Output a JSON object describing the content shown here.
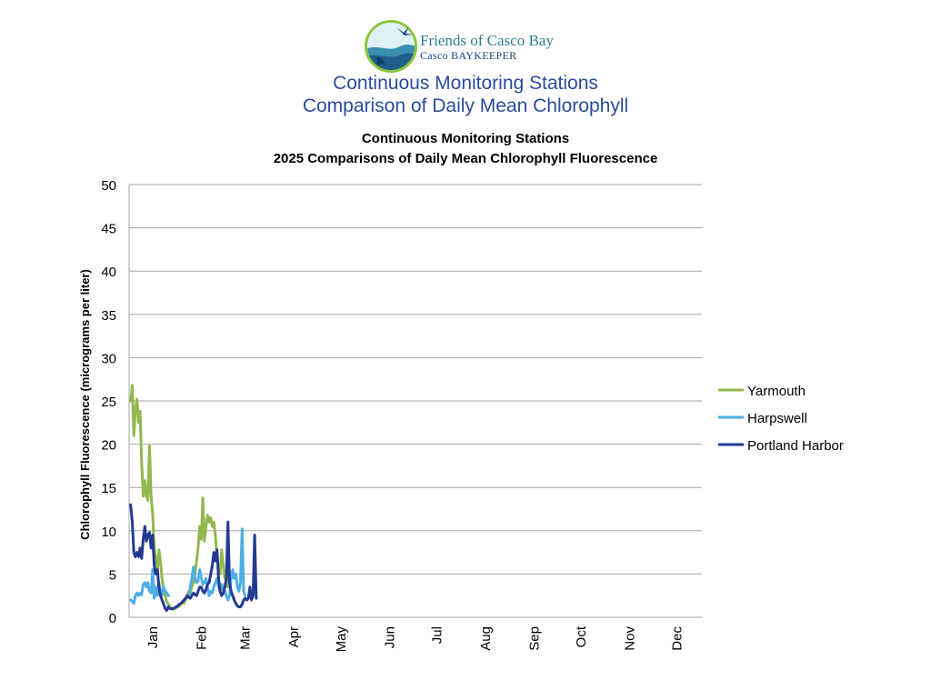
{
  "logo": {
    "name": "Friends of Casco Bay",
    "sub": "Casco BAYKEEPER"
  },
  "page_title": {
    "line1": "Continuous Monitoring Stations",
    "line2": "Comparison of Daily Mean Chlorophyll"
  },
  "colors": {
    "yarmouth": "#92b84e",
    "harpswell": "#4eaee5",
    "portland": "#233a92",
    "grid": "#a6a6a6",
    "title": "#2b4c9b"
  },
  "chart_data": {
    "type": "line",
    "title": [
      "Continuous Monitoring Stations",
      "2025 Comparisons of Daily Mean Chlorophyll Fluorescence"
    ],
    "xlabel": "",
    "ylabel": "Chlorophyll Fluorescence (micrograms per liter)",
    "ylim": [
      0,
      50
    ],
    "yticks": [
      0,
      5,
      10,
      15,
      20,
      25,
      30,
      35,
      40,
      45,
      50
    ],
    "xlim": [
      0,
      365
    ],
    "xticks": [
      {
        "label": "Jan",
        "day": 15
      },
      {
        "label": "Feb",
        "day": 46
      },
      {
        "label": "Mar",
        "day": 74
      },
      {
        "label": "Apr",
        "day": 105
      },
      {
        "label": "May",
        "day": 135
      },
      {
        "label": "Jun",
        "day": 166
      },
      {
        "label": "Jul",
        "day": 196
      },
      {
        "label": "Aug",
        "day": 227
      },
      {
        "label": "Sep",
        "day": 258
      },
      {
        "label": "Oct",
        "day": 288
      },
      {
        "label": "Nov",
        "day": 319
      },
      {
        "label": "Dec",
        "day": 349
      }
    ],
    "grid": true,
    "legend_position": "right",
    "series": [
      {
        "name": "Yarmouth",
        "color": "#92b84e",
        "points": [
          [
            1,
            25
          ],
          [
            2,
            26.8
          ],
          [
            3,
            21
          ],
          [
            4,
            24
          ],
          [
            5,
            25.2
          ],
          [
            6,
            22.5
          ],
          [
            7,
            23.8
          ],
          [
            8,
            18
          ],
          [
            9,
            14
          ],
          [
            10,
            15.8
          ],
          [
            11,
            14
          ],
          [
            12,
            13.5
          ],
          [
            13,
            19.8
          ],
          [
            14,
            14
          ],
          [
            15,
            12
          ],
          [
            16,
            8
          ],
          [
            17,
            7
          ],
          [
            18,
            5.2
          ],
          [
            19,
            7.8
          ],
          [
            20,
            6.5
          ],
          [
            21,
            4.5
          ],
          [
            22,
            3
          ],
          [
            23,
            2.5
          ],
          [
            24,
            1.8
          ],
          [
            25,
            1.5
          ],
          [
            26,
            1.2
          ],
          [
            27,
            1.0
          ],
          [
            28,
            0.9
          ],
          [
            29,
            1.0
          ],
          [
            30,
            1.1
          ],
          [
            31,
            1.2
          ],
          [
            32,
            1.3
          ],
          [
            33,
            1.5
          ],
          [
            34,
            1.8
          ],
          [
            35,
            1.6
          ],
          [
            36,
            2.0
          ],
          [
            37,
            2.5
          ],
          [
            38,
            3.0
          ],
          [
            39,
            2.8
          ],
          [
            40,
            3.5
          ],
          [
            41,
            4.0
          ],
          [
            42,
            5.0
          ],
          [
            43,
            6.5
          ],
          [
            44,
            8.0
          ],
          [
            45,
            10.5
          ],
          [
            46,
            9.0
          ],
          [
            47,
            13.8
          ],
          [
            48,
            8.8
          ],
          [
            49,
            10.5
          ],
          [
            50,
            11.8
          ],
          [
            51,
            11.0
          ],
          [
            52,
            11.5
          ],
          [
            53,
            10.5
          ],
          [
            54,
            11.0
          ],
          [
            55,
            9.5
          ],
          [
            56,
            7.0
          ],
          [
            57,
            5.5
          ],
          [
            58,
            5.0
          ],
          [
            59,
            7.8
          ],
          [
            60,
            6.0
          ],
          [
            61,
            4.5
          ],
          [
            62,
            5.2
          ],
          [
            63,
            3.5
          ]
        ]
      },
      {
        "name": "Harpswell",
        "color": "#4eaee5",
        "points": [
          [
            1,
            2.0
          ],
          [
            2,
            1.8
          ],
          [
            3,
            1.6
          ],
          [
            4,
            2.5
          ],
          [
            5,
            2.8
          ],
          [
            6,
            2.5
          ],
          [
            7,
            2.8
          ],
          [
            8,
            2.6
          ],
          [
            9,
            3.8
          ],
          [
            10,
            4.0
          ],
          [
            11,
            3.5
          ],
          [
            12,
            4.0
          ],
          [
            13,
            3.0
          ],
          [
            14,
            2.8
          ],
          [
            15,
            5.5
          ],
          [
            16,
            2.2
          ],
          [
            17,
            3.5
          ],
          [
            18,
            2.5
          ],
          [
            19,
            4.0
          ],
          [
            20,
            3.0
          ],
          [
            21,
            2.5
          ],
          [
            22,
            3.5
          ],
          [
            23,
            3.0
          ],
          [
            24,
            2.8
          ],
          [
            25,
            2.5
          ],
          [
            38,
            2.5
          ],
          [
            39,
            3.5
          ],
          [
            40,
            4.5
          ],
          [
            41,
            5.8
          ],
          [
            42,
            4.5
          ],
          [
            43,
            4.0
          ],
          [
            44,
            4.2
          ],
          [
            45,
            5.5
          ],
          [
            46,
            4.5
          ],
          [
            47,
            3.8
          ],
          [
            48,
            4.0
          ],
          [
            49,
            4.5
          ],
          [
            50,
            3.5
          ],
          [
            51,
            2.5
          ],
          [
            52,
            3.0
          ],
          [
            53,
            2.8
          ],
          [
            54,
            3.5
          ],
          [
            55,
            4.0
          ],
          [
            56,
            4.5
          ],
          [
            57,
            3.5
          ],
          [
            58,
            3.0
          ],
          [
            59,
            3.8
          ],
          [
            60,
            3.2
          ],
          [
            61,
            3.0
          ],
          [
            62,
            2.5
          ],
          [
            63,
            2.0
          ],
          [
            64,
            2.5
          ],
          [
            65,
            4.5
          ],
          [
            66,
            5.5
          ],
          [
            67,
            4.5
          ],
          [
            68,
            5.0
          ],
          [
            69,
            3.5
          ],
          [
            70,
            3.0
          ],
          [
            71,
            4.0
          ],
          [
            72,
            10.2
          ],
          [
            73,
            3.0
          ],
          [
            74,
            2.5
          ]
        ]
      },
      {
        "name": "Portland Harbor",
        "color": "#233a92",
        "points": [
          [
            1,
            13.0
          ],
          [
            2,
            11.0
          ],
          [
            3,
            7.5
          ],
          [
            4,
            7.0
          ],
          [
            5,
            7.5
          ],
          [
            6,
            7.0
          ],
          [
            7,
            8.0
          ],
          [
            8,
            6.8
          ],
          [
            9,
            9.0
          ],
          [
            10,
            10.5
          ],
          [
            11,
            8.8
          ],
          [
            12,
            9.5
          ],
          [
            13,
            9.8
          ],
          [
            14,
            8.0
          ],
          [
            15,
            9.5
          ],
          [
            16,
            6.0
          ],
          [
            17,
            5.0
          ],
          [
            18,
            5.5
          ],
          [
            19,
            3.5
          ],
          [
            20,
            2.5
          ],
          [
            21,
            2.0
          ],
          [
            22,
            1.5
          ],
          [
            23,
            1.0
          ],
          [
            24,
            0.8
          ],
          [
            25,
            1.2
          ],
          [
            26,
            1.0
          ],
          [
            27,
            1.0
          ],
          [
            28,
            1.0
          ],
          [
            29,
            1.1
          ],
          [
            30,
            1.2
          ],
          [
            31,
            1.3
          ],
          [
            32,
            1.5
          ],
          [
            33,
            1.6
          ],
          [
            34,
            1.8
          ],
          [
            35,
            2.0
          ],
          [
            36,
            2.2
          ],
          [
            37,
            2.5
          ],
          [
            38,
            2.3
          ],
          [
            39,
            2.2
          ],
          [
            40,
            2.5
          ],
          [
            41,
            2.8
          ],
          [
            42,
            2.6
          ],
          [
            43,
            2.5
          ],
          [
            44,
            3.0
          ],
          [
            45,
            3.5
          ],
          [
            46,
            3.5
          ],
          [
            47,
            3.0
          ],
          [
            48,
            2.8
          ],
          [
            49,
            3.2
          ],
          [
            50,
            3.8
          ],
          [
            51,
            4.0
          ],
          [
            52,
            5.0
          ],
          [
            53,
            6.0
          ],
          [
            54,
            7.5
          ],
          [
            55,
            6.5
          ],
          [
            56,
            7.8
          ],
          [
            57,
            4.5
          ],
          [
            58,
            3.0
          ],
          [
            59,
            2.5
          ],
          [
            60,
            2.8
          ],
          [
            61,
            3.5
          ],
          [
            62,
            4.5
          ],
          [
            63,
            11.0
          ],
          [
            64,
            4.0
          ],
          [
            65,
            3.0
          ],
          [
            66,
            2.5
          ],
          [
            67,
            2.0
          ],
          [
            68,
            1.6
          ],
          [
            69,
            1.3
          ],
          [
            70,
            1.2
          ],
          [
            71,
            1.2
          ],
          [
            72,
            1.5
          ],
          [
            73,
            2.0
          ],
          [
            74,
            2.2
          ],
          [
            75,
            2.0
          ],
          [
            76,
            2.2
          ],
          [
            77,
            3.5
          ],
          [
            78,
            2.0
          ],
          [
            79,
            2.5
          ],
          [
            80,
            9.5
          ],
          [
            81,
            2.2
          ]
        ]
      }
    ]
  }
}
